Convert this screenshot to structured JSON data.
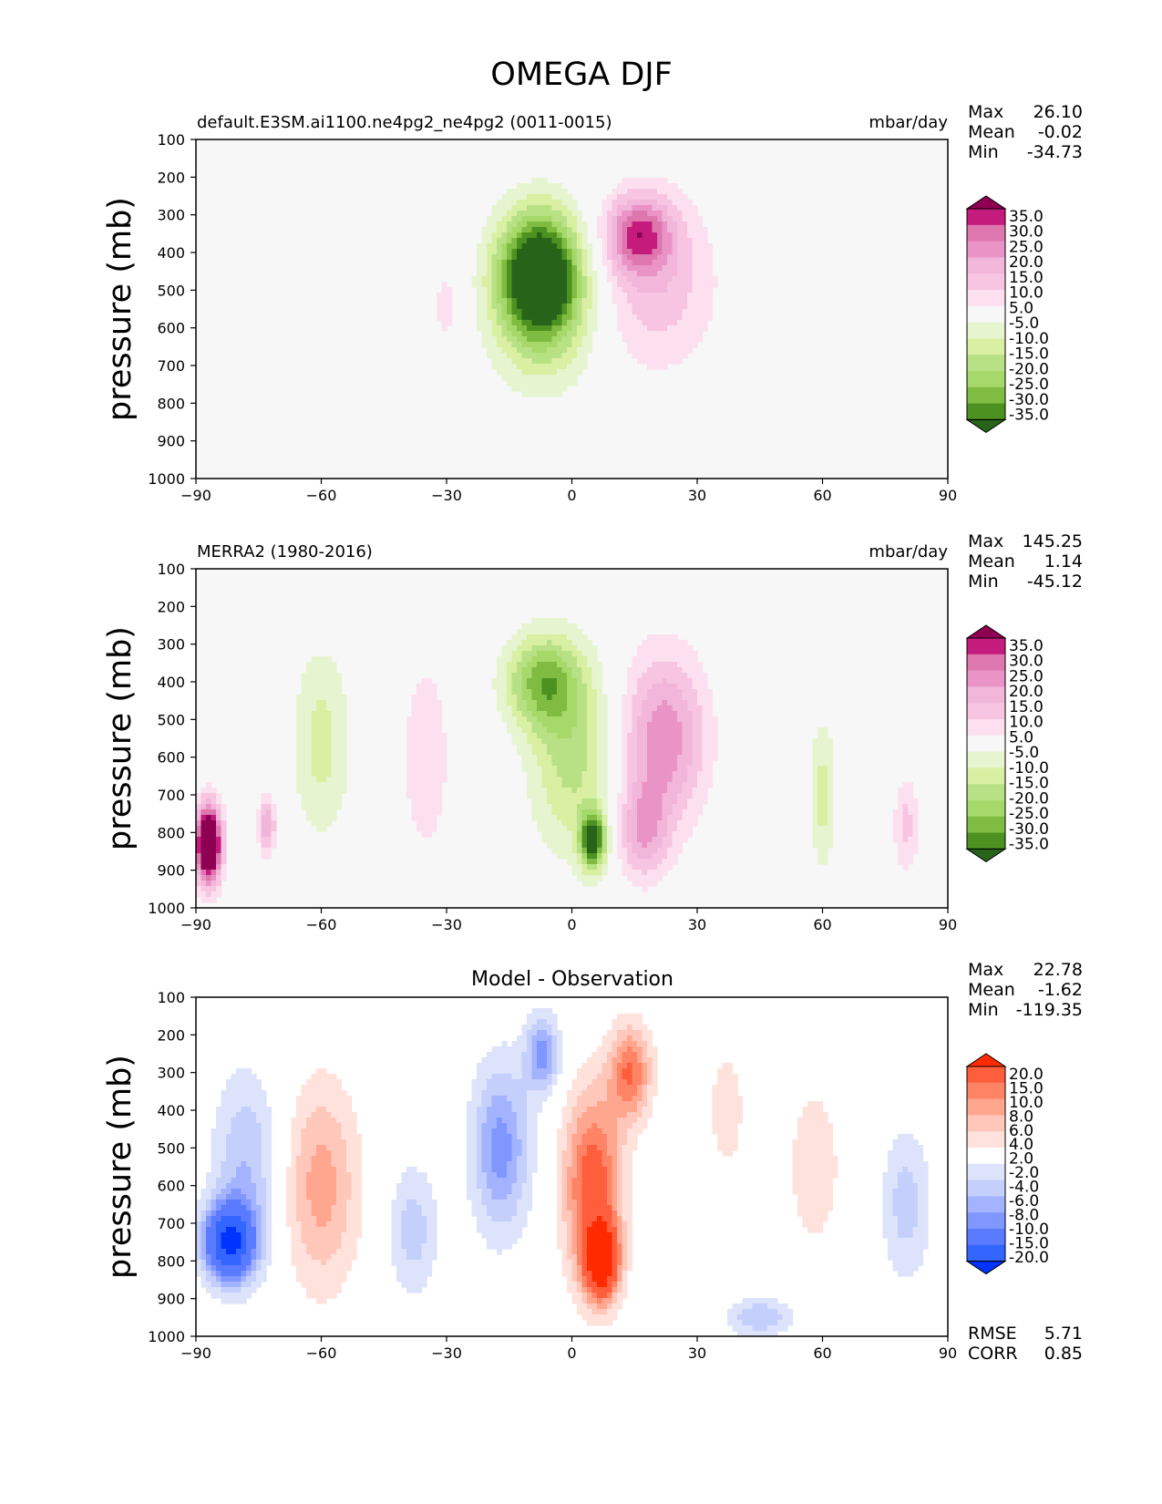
{
  "title": "OMEGA DJF",
  "colors": {
    "purple_green": [
      "#276419",
      "#4d9221",
      "#7fbc41",
      "#a6d96a",
      "#b8e186",
      "#d9efa2",
      "#e6f5d0",
      "#f7f7f7",
      "#fde0ef",
      "#f7c4e1",
      "#f1b6da",
      "#e993c6",
      "#de77ae",
      "#c51b7d",
      "#8e0152"
    ],
    "blue_red": [
      "#0033ff",
      "#3366ff",
      "#5a7bff",
      "#7f97ff",
      "#a3b3ff",
      "#c4cffb",
      "#dde3fb",
      "#ffffff",
      "#ffe2dc",
      "#ffc7b9",
      "#ffa68f",
      "#ff8466",
      "#ff5e3d",
      "#ff2a00"
    ]
  },
  "chart_data": [
    {
      "type": "heatmap",
      "name": "test",
      "title_left": "default.E3SM.ai1100.ne4pg2_ne4pg2 (0011-0015)",
      "title_right": "mbar/day",
      "ylabel": "pressure (mb)",
      "xlim": [
        -90,
        90
      ],
      "ylim": [
        1000,
        100
      ],
      "xticks": [
        "−90",
        "−60",
        "−30",
        "0",
        "30",
        "60",
        "90"
      ],
      "yticks": [
        "100",
        "200",
        "300",
        "400",
        "500",
        "600",
        "700",
        "800",
        "900",
        "1000"
      ],
      "stats": [
        [
          "Max",
          "26.10"
        ],
        [
          "Mean",
          "-0.02"
        ],
        [
          "Min",
          "-34.73"
        ]
      ],
      "colorbar_labels": [
        "35.0",
        "30.0",
        "25.0",
        "20.0",
        "15.0",
        "10.0",
        "5.0",
        "-5.0",
        "-10.0",
        "-15.0",
        "-20.0",
        "-25.0",
        "-30.0",
        "-35.0"
      ],
      "palette": "purple_green",
      "blobs": [
        {
          "lat": -8,
          "p": 450,
          "value": -33,
          "w": 9,
          "h": 300
        },
        {
          "lat": -7,
          "p": 520,
          "value": -25,
          "w": 12,
          "h": 420
        },
        {
          "lat": 16,
          "p": 350,
          "value": 26,
          "w": 8,
          "h": 200
        },
        {
          "lat": 20,
          "p": 480,
          "value": 14,
          "w": 14,
          "h": 450
        },
        {
          "lat": -30,
          "p": 540,
          "value": 7,
          "w": 4,
          "h": 280
        }
      ]
    },
    {
      "type": "heatmap",
      "name": "reference",
      "title_left": "MERRA2 (1980-2016)",
      "title_right": "mbar/day",
      "ylabel": "pressure (mb)",
      "xlim": [
        -90,
        90
      ],
      "ylim": [
        1000,
        100
      ],
      "xticks": [
        "−90",
        "−60",
        "−30",
        "0",
        "30",
        "60",
        "90"
      ],
      "yticks": [
        "100",
        "200",
        "300",
        "400",
        "500",
        "600",
        "700",
        "800",
        "900",
        "1000"
      ],
      "stats": [
        [
          "Max",
          "145.25"
        ],
        [
          "Mean",
          "1.14"
        ],
        [
          "Min",
          "-45.12"
        ]
      ],
      "colorbar_labels": [
        "35.0",
        "30.0",
        "25.0",
        "20.0",
        "15.0",
        "10.0",
        "5.0",
        "-5.0",
        "-10.0",
        "-15.0",
        "-20.0",
        "-25.0",
        "-30.0",
        "-35.0"
      ],
      "palette": "purple_green",
      "blobs": [
        {
          "lat": -7,
          "p": 400,
          "value": -25,
          "w": 9,
          "h": 250
        },
        {
          "lat": 5,
          "p": 820,
          "value": -40,
          "w": 3,
          "h": 150
        },
        {
          "lat": 0,
          "p": 600,
          "value": -17,
          "w": 10,
          "h": 500
        },
        {
          "lat": 22,
          "p": 550,
          "value": 24,
          "w": 10,
          "h": 450
        },
        {
          "lat": 17,
          "p": 800,
          "value": 18,
          "w": 6,
          "h": 250
        },
        {
          "lat": -87,
          "p": 830,
          "value": 60,
          "w": 3,
          "h": 200
        },
        {
          "lat": -73,
          "p": 780,
          "value": 20,
          "w": 2,
          "h": 150
        },
        {
          "lat": -60,
          "p": 560,
          "value": -12,
          "w": 7,
          "h": 500
        },
        {
          "lat": -35,
          "p": 600,
          "value": 9,
          "w": 6,
          "h": 550
        },
        {
          "lat": 60,
          "p": 700,
          "value": -12,
          "w": 3,
          "h": 400
        },
        {
          "lat": 80,
          "p": 780,
          "value": 12,
          "w": 3,
          "h": 250
        }
      ]
    },
    {
      "type": "heatmap",
      "name": "difference",
      "title_center": "Model - Observation",
      "ylabel": "pressure (mb)",
      "xlim": [
        -90,
        90
      ],
      "ylim": [
        1000,
        100
      ],
      "xticks": [
        "−90",
        "−60",
        "−30",
        "0",
        "30",
        "60",
        "90"
      ],
      "yticks": [
        "100",
        "200",
        "300",
        "400",
        "500",
        "600",
        "700",
        "800",
        "900",
        "1000"
      ],
      "stats": [
        [
          "Max",
          "22.78"
        ],
        [
          "Mean",
          "-1.62"
        ],
        [
          "Min",
          "-119.35"
        ]
      ],
      "footer_stats": [
        [
          "RMSE",
          "5.71"
        ],
        [
          "CORR",
          "0.85"
        ]
      ],
      "colorbar_labels": [
        "20.0",
        "15.0",
        "10.0",
        "8.0",
        "6.0",
        "4.0",
        "2.0",
        "-2.0",
        "-4.0",
        "-6.0",
        "-8.0",
        "-10.0",
        "-15.0",
        "-20.0"
      ],
      "palette": "blue_red",
      "blobs": [
        {
          "lat": 5,
          "p": 600,
          "value": 12,
          "w": 7,
          "h": 500
        },
        {
          "lat": 7,
          "p": 800,
          "value": 18,
          "w": 4,
          "h": 200
        },
        {
          "lat": 14,
          "p": 300,
          "value": 10,
          "w": 5,
          "h": 250
        },
        {
          "lat": -17,
          "p": 500,
          "value": -9,
          "w": 7,
          "h": 450
        },
        {
          "lat": -7,
          "p": 250,
          "value": -9,
          "w": 4,
          "h": 200
        },
        {
          "lat": -82,
          "p": 750,
          "value": -20,
          "w": 6,
          "h": 200
        },
        {
          "lat": -78,
          "p": 550,
          "value": -6,
          "w": 8,
          "h": 500
        },
        {
          "lat": -60,
          "p": 600,
          "value": 7,
          "w": 9,
          "h": 550
        },
        {
          "lat": -38,
          "p": 720,
          "value": -5,
          "w": 6,
          "h": 350
        },
        {
          "lat": 37,
          "p": 400,
          "value": 4,
          "w": 4,
          "h": 300
        },
        {
          "lat": 58,
          "p": 550,
          "value": 3,
          "w": 8,
          "h": 550
        },
        {
          "lat": 80,
          "p": 650,
          "value": -5,
          "w": 6,
          "h": 400
        },
        {
          "lat": 45,
          "p": 950,
          "value": -6,
          "w": 8,
          "h": 100
        }
      ]
    }
  ]
}
